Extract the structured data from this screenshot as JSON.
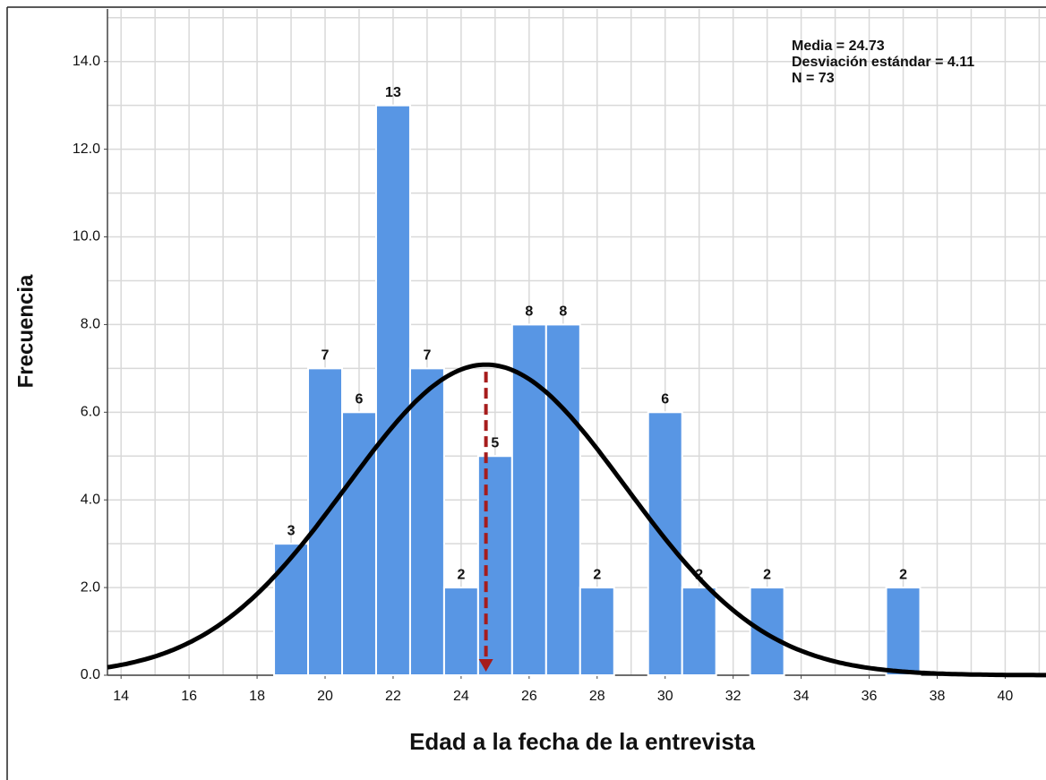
{
  "chart_data": {
    "type": "histogram",
    "xlabel": "Edad a la fecha de la entrevista",
    "ylabel": "Frecuencia",
    "annotations": [
      "Media = 24.73",
      "Desviación estándar = 4.11",
      "N = 73"
    ],
    "bins": [
      18.5,
      19.5,
      20.5,
      21.5,
      22.5,
      23.5,
      24.5,
      25.5,
      26.5,
      27.5,
      28.5,
      29.5,
      30.5,
      31.5,
      32.5,
      33.5,
      34.5,
      35.5,
      36.5,
      37.5
    ],
    "values": [
      3,
      7,
      6,
      13,
      7,
      2,
      5,
      8,
      8,
      2,
      0,
      6,
      2,
      0,
      2,
      0,
      0,
      0,
      2
    ],
    "color": "#5896e4",
    "curve": {
      "mean": 24.73,
      "sd": 4.11,
      "n": 73,
      "color": "#000000"
    },
    "mean_marker_color": "#a61c1c",
    "xlim": [
      13.6,
      41.2
    ],
    "ylim": [
      0,
      15.2
    ],
    "xticks": [
      14,
      16,
      18,
      20,
      22,
      24,
      26,
      28,
      30,
      32,
      34,
      36,
      38,
      40
    ],
    "yticks": [
      {
        "value": 0,
        "label": "0.0"
      },
      {
        "value": 2,
        "label": "2.0"
      },
      {
        "value": 4,
        "label": "4.0"
      },
      {
        "value": 6,
        "label": "6.0"
      },
      {
        "value": 8,
        "label": "8.0"
      },
      {
        "value": 10,
        "label": "10.0"
      },
      {
        "value": 12,
        "label": "12.0"
      },
      {
        "value": 14,
        "label": "14.0"
      }
    ],
    "grid": true,
    "grid_step": 1
  }
}
